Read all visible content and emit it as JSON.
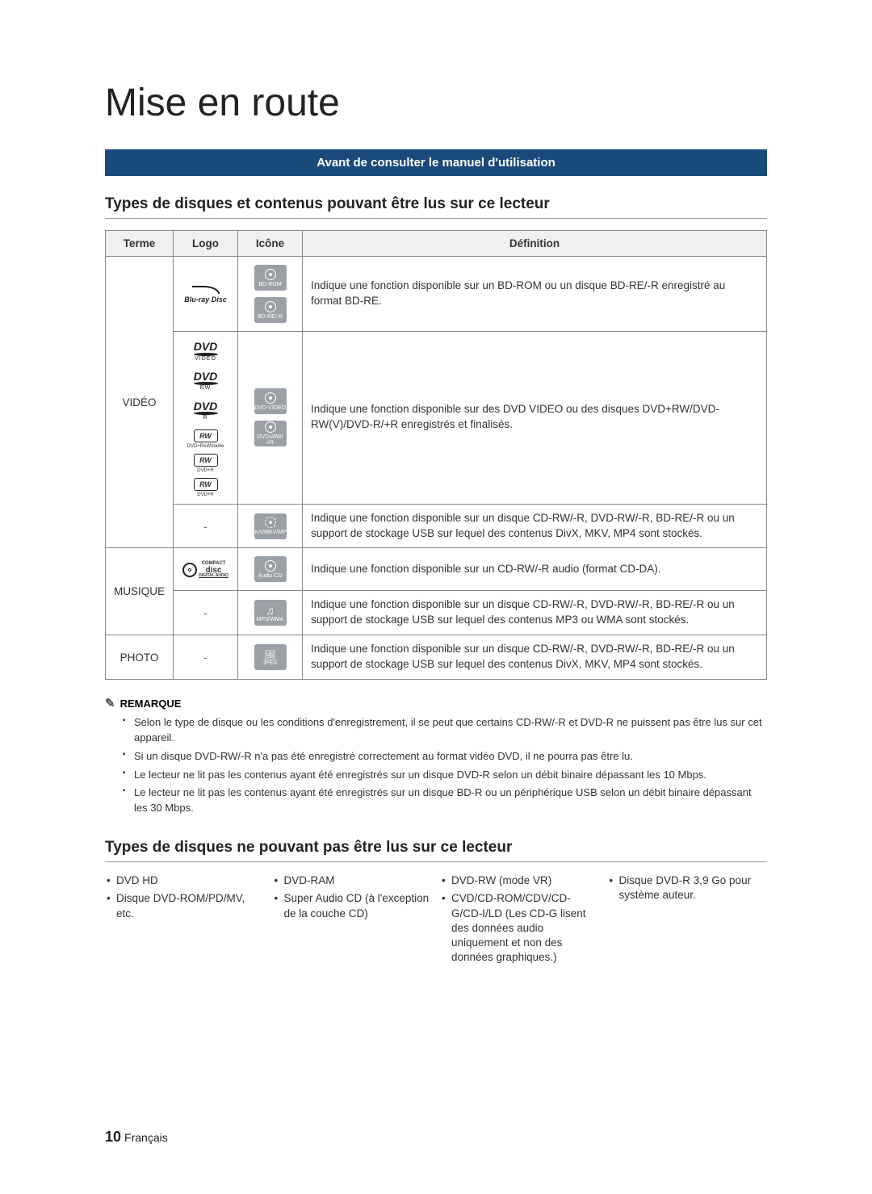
{
  "page_title": "Mise en route",
  "banner": "Avant de consulter le manuel d'utilisation",
  "section1_heading": "Types de disques et contenus pouvant être lus sur ce lecteur",
  "table_headers": {
    "terme": "Terme",
    "logo": "Logo",
    "icone": "Icône",
    "definition": "Définition"
  },
  "terms": {
    "video": "VIDÉO",
    "music": "MUSIQUE",
    "photo": "PHOTO"
  },
  "icon_labels": {
    "bdrom": "BD-ROM",
    "bdre": "BD-RE/-R",
    "dvdvideo": "DVD-VIDEO",
    "dvdrw": "DVD±RW/±R",
    "divx": "DivX/MKV/MP4",
    "audiocd": "Audio CD",
    "mp3wma": "MP3/WMA",
    "jpeg": "JPEG"
  },
  "logo_text": {
    "bluray": "Blu-ray Disc",
    "dvd": "DVD",
    "dvd_video": "VIDEO",
    "dvd_rw": "RW",
    "dvd_r": "R",
    "rw": "RW",
    "rw_rewritable": "DVD+ReWritable",
    "rw_r1": "DVD+R",
    "rw_r2": "DVD+R",
    "cd_compact": "COMPACT",
    "cd_disc": "disc",
    "cd_digital": "DIGITAL AUDIO"
  },
  "definitions": {
    "bd": "Indique une fonction disponible sur un BD-ROM ou un disque BD-RE/-R enregistré au format BD-RE.",
    "dvd": "Indique une fonction disponible sur des DVD VIDEO ou des disques DVD+RW/DVD-RW(V)/DVD-R/+R enregistrés et finalisés.",
    "divx": "Indique une fonction disponible sur un disque CD-RW/-R, DVD-RW/-R, BD-RE/-R ou un support de stockage USB sur lequel des contenus DivX, MKV, MP4 sont stockés.",
    "audiocd": "Indique une fonction disponible sur un CD-RW/-R audio (format CD-DA).",
    "mp3": "Indique une fonction disponible sur un disque CD-RW/-R, DVD-RW/-R, BD-RE/-R ou un support de stockage USB sur lequel des contenus MP3 ou WMA sont stockés.",
    "jpeg": "Indique une fonction disponible sur un disque CD-RW/-R, DVD-RW/-R, BD-RE/-R ou un support de stockage USB sur lequel des contenus DivX, MKV, MP4 sont stockés."
  },
  "remark_label": "REMARQUE",
  "remarks": [
    "Selon le type de disque ou les conditions d'enregistrement, il se peut que certains CD-RW/-R et DVD-R ne puissent pas être lus sur cet appareil.",
    "Si un disque DVD-RW/-R n'a pas été enregistré correctement au format vidéo DVD, il ne pourra pas être lu.",
    "Le lecteur ne lit pas les contenus ayant été enregistrés sur un disque DVD-R selon un débit binaire dépassant les 10 Mbps.",
    "Le lecteur ne lit pas les contenus ayant été enregistrés sur un disque BD-R ou un périphérique USB selon un débit binaire dépassant les 30 Mbps."
  ],
  "section2_heading": "Types de disques ne pouvant pas être lus sur ce lecteur",
  "cant_cols": {
    "c1": [
      "DVD HD",
      "Disque DVD-ROM/PD/MV, etc."
    ],
    "c2": [
      "DVD-RAM",
      "Super Audio CD (à l'exception de la couche CD)"
    ],
    "c3": [
      "DVD-RW (mode VR)",
      "CVD/CD-ROM/CDV/CD-G/CD-I/LD (Les CD-G lisent des données audio uniquement et non des données graphiques.)"
    ],
    "c4": [
      "Disque DVD-R 3,9 Go pour système auteur."
    ]
  },
  "page_number": "10",
  "page_lang": "Français",
  "colors": {
    "banner_bg": "#1a4a7a",
    "banner_fg": "#ffffff",
    "icon_bg": "#9aa0a6",
    "border": "#888888",
    "text": "#333333"
  }
}
